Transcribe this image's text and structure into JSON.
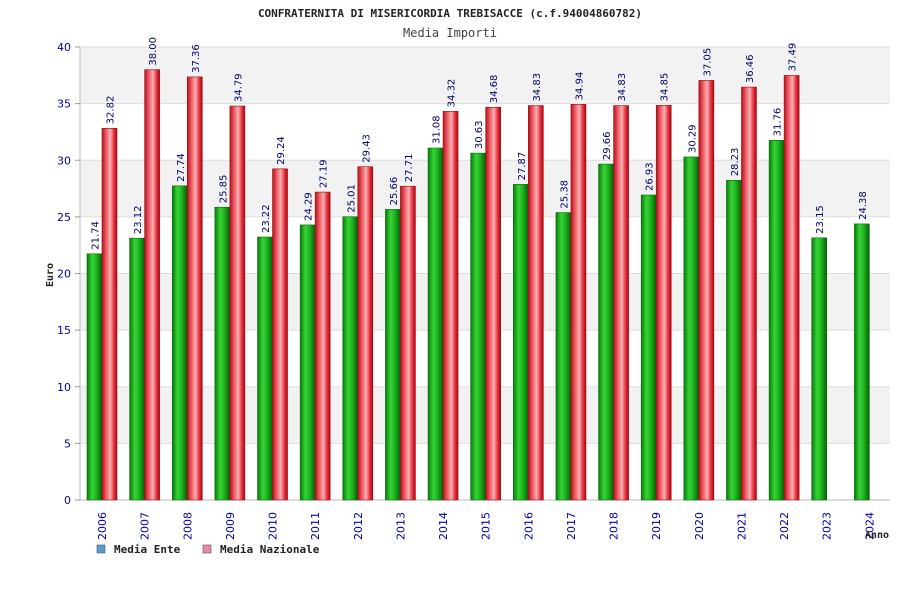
{
  "chart_data": {
    "type": "bar",
    "title": "CONFRATERNITA DI MISERICORDIA TREBISACCE (c.f.94004860782)",
    "subtitle": "Media Importi",
    "xlabel": "Anno",
    "ylabel": "Euro",
    "ylim": [
      0,
      40
    ],
    "yticks": [
      0,
      5,
      10,
      15,
      20,
      25,
      30,
      35,
      40
    ],
    "grid": true,
    "legend_position": "bottom-left",
    "categories": [
      "2006",
      "2007",
      "2008",
      "2009",
      "2010",
      "2011",
      "2012",
      "2013",
      "2014",
      "2015",
      "2016",
      "2017",
      "2018",
      "2019",
      "2020",
      "2021",
      "2022",
      "2023",
      "2024"
    ],
    "series": [
      {
        "name": "Media Ente",
        "legend_color": "#5b9bd5",
        "bar_color": "#1aa51a",
        "values": [
          21.74,
          23.12,
          27.74,
          25.85,
          23.22,
          24.29,
          25.01,
          25.66,
          31.08,
          30.63,
          27.87,
          25.38,
          29.66,
          26.93,
          30.29,
          28.23,
          31.76,
          23.15,
          24.38
        ],
        "labels": [
          "21.74",
          "23.12",
          "27.74",
          "25.85",
          "23.22",
          "24.29",
          "25.01",
          "25.66",
          "31.08",
          "30.63",
          "27.87",
          "25.38",
          "29.66",
          "26.93",
          "30.29",
          "28.23",
          "31.76",
          "23.15",
          "24.38"
        ]
      },
      {
        "name": "Media Nazionale",
        "legend_color": "#e58aa8",
        "bar_color": "#e8202a",
        "values": [
          32.82,
          38.0,
          37.36,
          34.79,
          29.24,
          27.19,
          29.43,
          27.71,
          34.32,
          34.68,
          34.83,
          34.94,
          34.83,
          34.85,
          37.05,
          36.46,
          37.49,
          null,
          null
        ],
        "labels": [
          "32.82",
          "38.00",
          "37.36",
          "34.79",
          "29.24",
          "27.19",
          "29.43",
          "27.71",
          "34.32",
          "34.68",
          "34.83",
          "34.94",
          "34.83",
          "34.85",
          "37.05",
          "36.46",
          "37.49",
          "",
          ""
        ]
      }
    ]
  }
}
